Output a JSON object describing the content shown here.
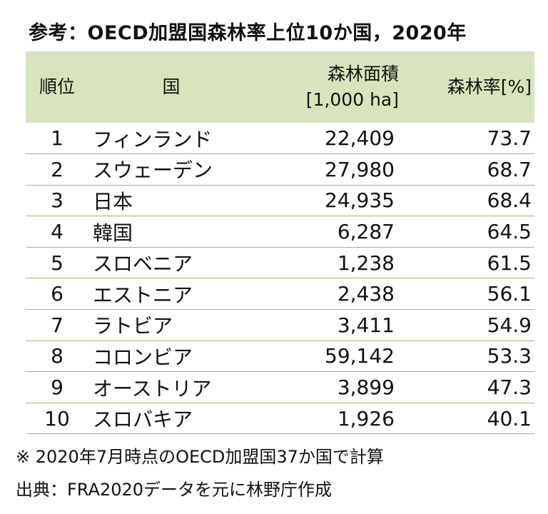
{
  "title": "参考：OECD加盟国森林率上位10か国，2020年",
  "table": {
    "headers": {
      "rank": "順位",
      "country": "国",
      "area_line1": "森林面積",
      "area_line2": "[1,000 ha]",
      "rate": "森林率[%]"
    },
    "rows": [
      {
        "rank": "1",
        "country": "フィンランド",
        "area": "22,409",
        "rate": "73.7"
      },
      {
        "rank": "2",
        "country": "スウェーデン",
        "area": "27,980",
        "rate": "68.7"
      },
      {
        "rank": "3",
        "country": "日本",
        "area": "24,935",
        "rate": "68.4"
      },
      {
        "rank": "4",
        "country": "韓国",
        "area": "6,287",
        "rate": "64.5"
      },
      {
        "rank": "5",
        "country": "スロベニア",
        "area": "1,238",
        "rate": "61.5"
      },
      {
        "rank": "6",
        "country": "エストニア",
        "area": "2,438",
        "rate": "56.1"
      },
      {
        "rank": "7",
        "country": "ラトビア",
        "area": "3,411",
        "rate": "54.9"
      },
      {
        "rank": "8",
        "country": "コロンビア",
        "area": "59,142",
        "rate": "53.3"
      },
      {
        "rank": "9",
        "country": "オーストリア",
        "area": "3,899",
        "rate": "47.3"
      },
      {
        "rank": "10",
        "country": "スロバキア",
        "area": "1,926",
        "rate": "40.1"
      }
    ]
  },
  "note": "※ 2020年7月時点のOECD加盟国37か国で計算",
  "source": "出典：FRA2020データを元に林野庁作成",
  "colors": {
    "header_bg": "#d7e4bd",
    "row_border": "#9bb86a"
  }
}
